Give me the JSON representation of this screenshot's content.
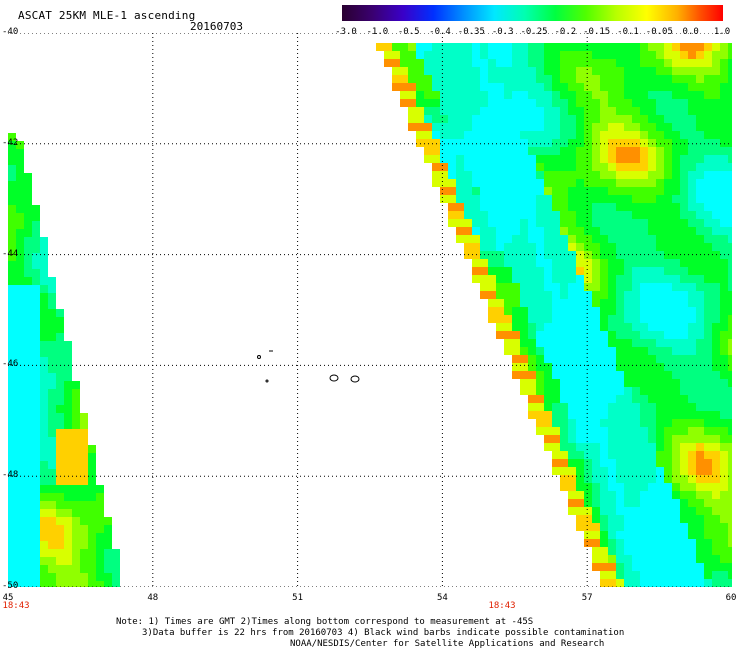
{
  "header": {
    "title": "ASCAT 25KM MLE-1 ascending",
    "date": "20160703"
  },
  "colorbar": {
    "colors": [
      "#2a0030",
      "#3a0070",
      "#3a00c8",
      "#0030ff",
      "#0090ff",
      "#00e8ff",
      "#00ffb0",
      "#00ff40",
      "#50ff00",
      "#b8ff00",
      "#ffff00",
      "#ffb000",
      "#ff5000",
      "#ff0000"
    ],
    "labels": [
      "-3.0",
      "-1.0",
      "-0.5",
      "-0.4",
      "-0.35",
      "-0.3",
      "-0.25",
      "-0.2",
      "-0.15",
      "-0.1",
      "-0.05",
      "0.0",
      "1.0"
    ]
  },
  "axes": {
    "x_ticks": [
      "45",
      "48",
      "51",
      "54",
      "57",
      "60"
    ],
    "y_ticks": [
      "-40",
      "-42",
      "-44",
      "-46",
      "-48",
      "-50"
    ],
    "pass_times": [
      "18:43",
      "18:43"
    ]
  },
  "notes": [
    "Note: 1) Times are GMT 2)Times along bottom correspond to measurement at -45S",
    "3)Data buffer is 22 hrs from 20160703 4) Black wind barbs indicate possible contamination",
    "NOAA/NESDIS/Center for Satellite Applications and Research"
  ]
}
